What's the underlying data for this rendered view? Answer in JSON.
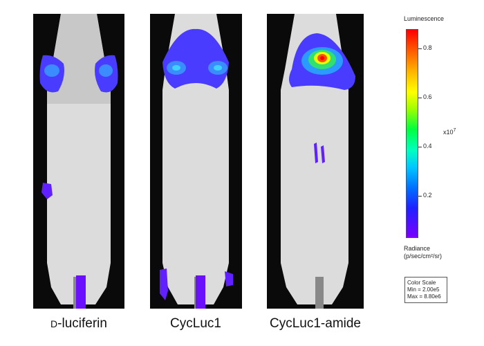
{
  "panels": [
    {
      "caption_prefix": "D",
      "caption_rest": "-luciferin"
    },
    {
      "caption_prefix": "",
      "caption_rest": "CycLuc1"
    },
    {
      "caption_prefix": "",
      "caption_rest": "CycLuc1-amide"
    }
  ],
  "legend": {
    "title": "Luminescence",
    "ticks": [
      "0.8",
      "0.6",
      "0.4",
      "0.2"
    ],
    "tick_values": [
      0.8,
      0.6,
      0.4,
      0.2
    ],
    "exponent_base": "x10",
    "exponent_power": "7",
    "units_line1": "Radiance",
    "units_line2": "(p/sec/cm²/sr)",
    "color_scale_label": "Color Scale",
    "min_label": "Min = 2.00e5",
    "max_label": "Max = 8.80e6",
    "colormap_top": "#ff0000",
    "colormap_bottom": "#7a00ff"
  }
}
